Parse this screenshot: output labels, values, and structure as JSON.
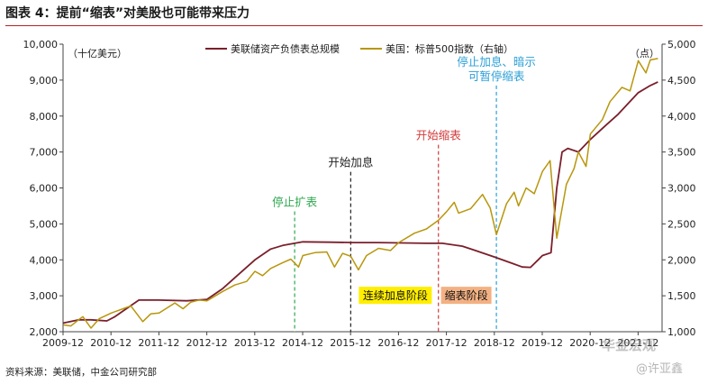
{
  "page": {
    "title": "图表 4：提前“缩表”对美股也可能带来压力",
    "source": "资料来源：美联储，中金公司研究部",
    "watermark": "华金宏观",
    "watermark_author": "@许亚鑫"
  },
  "chart_data": {
    "type": "line",
    "left_unit_label": "（十亿美元）",
    "right_unit_label": "（点）",
    "x_range": [
      2009.917,
      2022.417
    ],
    "x_ticks": [
      "2009-12",
      "2010-12",
      "2011-12",
      "2012-12",
      "2013-12",
      "2014-12",
      "2015-12",
      "2016-12",
      "2017-12",
      "2018-12",
      "2019-12",
      "2020-12",
      "2021-12"
    ],
    "y_left": {
      "min": 2000,
      "max": 10000,
      "ticks": [
        "2,000",
        "3,000",
        "4,000",
        "5,000",
        "6,000",
        "7,000",
        "8,000",
        "9,000",
        "10,000"
      ]
    },
    "y_right": {
      "min": 1000,
      "max": 5000,
      "ticks": [
        "1,000",
        "1,500",
        "2,000",
        "2,500",
        "3,000",
        "3,500",
        "4,000",
        "4,500",
        "5,000"
      ]
    },
    "colors": {
      "fed": "#7a1f2b",
      "spx": "#b8960c",
      "stop_expand": "#2fa84f",
      "start_hike": "#222222",
      "start_shrink": "#d23a3a",
      "pause": "#2a9fd6",
      "hike_phase_bg": "#ffee00",
      "shrink_phase_bg": "#f3b183"
    },
    "series": [
      {
        "name": "美联储资产负债表总规模",
        "axis": "left",
        "points": [
          [
            2009.92,
            2240
          ],
          [
            2010.25,
            2330
          ],
          [
            2010.5,
            2330
          ],
          [
            2010.83,
            2300
          ],
          [
            2011.0,
            2420
          ],
          [
            2011.5,
            2880
          ],
          [
            2011.9,
            2880
          ],
          [
            2012.5,
            2860
          ],
          [
            2012.92,
            2900
          ],
          [
            2013.25,
            3200
          ],
          [
            2013.5,
            3500
          ],
          [
            2013.92,
            4000
          ],
          [
            2014.25,
            4300
          ],
          [
            2014.5,
            4400
          ],
          [
            2014.92,
            4500
          ],
          [
            2015.5,
            4490
          ],
          [
            2016.0,
            4480
          ],
          [
            2016.5,
            4480
          ],
          [
            2017.0,
            4470
          ],
          [
            2017.5,
            4460
          ],
          [
            2017.83,
            4460
          ],
          [
            2018.25,
            4380
          ],
          [
            2018.5,
            4270
          ],
          [
            2018.92,
            4080
          ],
          [
            2019.25,
            3920
          ],
          [
            2019.5,
            3800
          ],
          [
            2019.67,
            3790
          ],
          [
            2019.83,
            4000
          ],
          [
            2019.92,
            4120
          ],
          [
            2020.1,
            4200
          ],
          [
            2020.22,
            6000
          ],
          [
            2020.33,
            7000
          ],
          [
            2020.45,
            7100
          ],
          [
            2020.67,
            7000
          ],
          [
            2020.92,
            7350
          ],
          [
            2021.25,
            7750
          ],
          [
            2021.5,
            8050
          ],
          [
            2021.92,
            8650
          ],
          [
            2022.17,
            8850
          ],
          [
            2022.33,
            8950
          ]
        ]
      },
      {
        "name": "美国：标普500指数（右轴）",
        "axis": "right",
        "points": [
          [
            2009.92,
            1095
          ],
          [
            2010.08,
            1080
          ],
          [
            2010.25,
            1170
          ],
          [
            2010.33,
            1210
          ],
          [
            2010.5,
            1050
          ],
          [
            2010.67,
            1180
          ],
          [
            2010.92,
            1260
          ],
          [
            2011.17,
            1320
          ],
          [
            2011.33,
            1360
          ],
          [
            2011.58,
            1140
          ],
          [
            2011.75,
            1250
          ],
          [
            2011.92,
            1260
          ],
          [
            2012.25,
            1400
          ],
          [
            2012.42,
            1320
          ],
          [
            2012.58,
            1410
          ],
          [
            2012.75,
            1440
          ],
          [
            2012.92,
            1430
          ],
          [
            2013.25,
            1560
          ],
          [
            2013.5,
            1650
          ],
          [
            2013.75,
            1700
          ],
          [
            2013.92,
            1840
          ],
          [
            2014.08,
            1780
          ],
          [
            2014.25,
            1880
          ],
          [
            2014.5,
            1960
          ],
          [
            2014.67,
            2010
          ],
          [
            2014.83,
            1900
          ],
          [
            2014.92,
            2060
          ],
          [
            2015.17,
            2100
          ],
          [
            2015.42,
            2110
          ],
          [
            2015.58,
            1900
          ],
          [
            2015.75,
            2090
          ],
          [
            2015.92,
            2050
          ],
          [
            2016.08,
            1860
          ],
          [
            2016.25,
            2060
          ],
          [
            2016.5,
            2160
          ],
          [
            2016.75,
            2130
          ],
          [
            2016.92,
            2240
          ],
          [
            2017.25,
            2370
          ],
          [
            2017.5,
            2430
          ],
          [
            2017.75,
            2550
          ],
          [
            2017.92,
            2670
          ],
          [
            2018.08,
            2800
          ],
          [
            2018.17,
            2650
          ],
          [
            2018.42,
            2710
          ],
          [
            2018.67,
            2910
          ],
          [
            2018.83,
            2720
          ],
          [
            2018.96,
            2350
          ],
          [
            2019.17,
            2780
          ],
          [
            2019.33,
            2940
          ],
          [
            2019.42,
            2750
          ],
          [
            2019.58,
            3000
          ],
          [
            2019.75,
            2920
          ],
          [
            2019.92,
            3230
          ],
          [
            2020.08,
            3380
          ],
          [
            2020.22,
            2300
          ],
          [
            2020.42,
            3050
          ],
          [
            2020.58,
            3270
          ],
          [
            2020.67,
            3500
          ],
          [
            2020.83,
            3300
          ],
          [
            2020.92,
            3750
          ],
          [
            2021.17,
            3950
          ],
          [
            2021.33,
            4200
          ],
          [
            2021.58,
            4400
          ],
          [
            2021.75,
            4350
          ],
          [
            2021.92,
            4770
          ],
          [
            2022.08,
            4600
          ],
          [
            2022.17,
            4780
          ],
          [
            2022.33,
            4800
          ]
        ]
      }
    ],
    "events": [
      {
        "label": "停止扩表",
        "x": 2014.75,
        "color_key": "stop_expand",
        "label_y": 5500
      },
      {
        "label": "开始加息",
        "x": 2015.92,
        "color_key": "start_hike",
        "label_y": 6600
      },
      {
        "label": "开始缩表",
        "x": 2017.75,
        "color_key": "start_shrink",
        "label_y": 7350
      },
      {
        "label": "停止加息、暗示\n可暂停缩表",
        "x": 2018.96,
        "color_key": "pause",
        "label_y": 9000
      }
    ],
    "phases": [
      {
        "label": "连续加息阶段",
        "x_center": 2016.85,
        "y": 3000,
        "color_key": "hike_phase_bg"
      },
      {
        "label": "缩表阶段",
        "x_center": 2018.33,
        "y": 3000,
        "color_key": "shrink_phase_bg"
      }
    ]
  }
}
